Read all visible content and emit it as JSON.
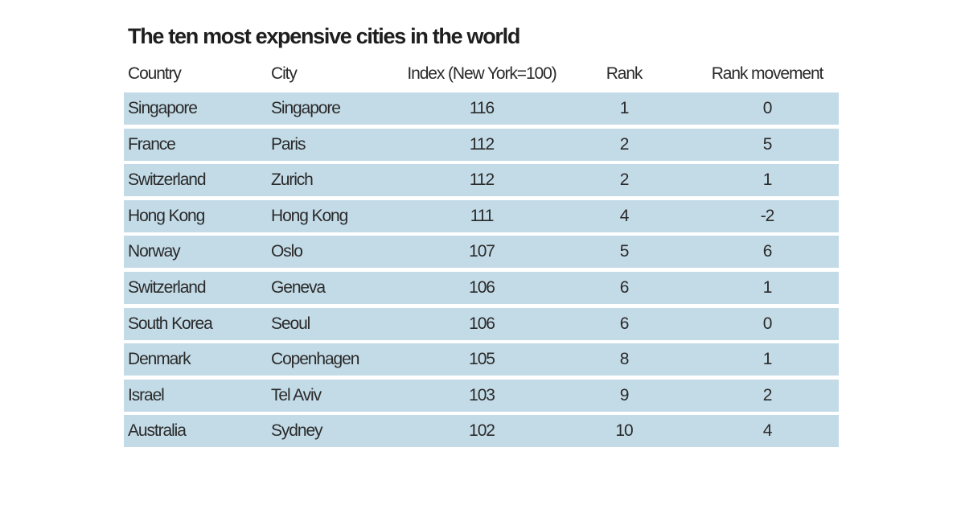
{
  "chart_data": {
    "type": "table",
    "title": "The ten most expensive cities in the world",
    "columns": [
      "Country",
      "City",
      "Index (New York=100)",
      "Rank",
      "Rank movement"
    ],
    "rows": [
      [
        "Singapore",
        "Singapore",
        "116",
        "1",
        "0"
      ],
      [
        "France",
        "Paris",
        "112",
        "2",
        "5"
      ],
      [
        "Switzerland",
        "Zurich",
        "112",
        "2",
        "1"
      ],
      [
        "Hong Kong",
        "Hong Kong",
        "111",
        "4",
        "-2"
      ],
      [
        "Norway",
        "Oslo",
        "107",
        "5",
        "6"
      ],
      [
        "Switzerland",
        "Geneva",
        "106",
        "6",
        "1"
      ],
      [
        "South Korea",
        "Seoul",
        "106",
        "6",
        "0"
      ],
      [
        "Denmark",
        "Copenhagen",
        "105",
        "8",
        "1"
      ],
      [
        "Israel",
        "Tel Aviv",
        "103",
        "9",
        "2"
      ],
      [
        "Australia",
        "Sydney",
        "102",
        "10",
        "4"
      ]
    ],
    "row_color": "#c3dbe7"
  }
}
